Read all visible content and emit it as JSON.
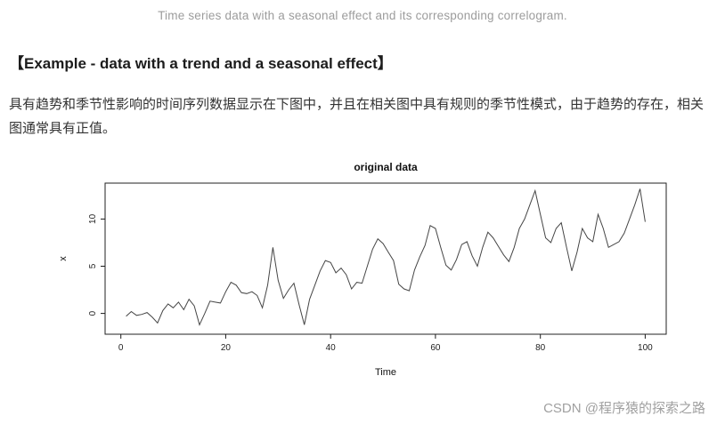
{
  "page": {
    "caption": "Time series data with a seasonal effect and its corresponding correlogram.",
    "heading": "【Example - data with a trend and a seasonal effect】",
    "paragraph": "具有趋势和季节性影响的时间序列数据显示在下图中，并且在相关图中具有规则的季节性模式，由于趋势的存在，相关图通常具有正值。",
    "watermark": "CSDN @程序猿的探索之路"
  },
  "chart_data": {
    "type": "line",
    "title": "original data",
    "xlabel": "Time",
    "ylabel": "x",
    "xlim": [
      -3,
      104
    ],
    "ylim": [
      -2.2,
      13.8
    ],
    "x_ticks": [
      0,
      20,
      40,
      60,
      80,
      100
    ],
    "y_ticks": [
      0,
      5,
      10
    ],
    "line_color": "#454545",
    "axis_color": "#1a1a1a",
    "x_start": 1,
    "x_step": 1,
    "values": [
      -0.3,
      0.2,
      -0.2,
      -0.1,
      0.1,
      -0.4,
      -1.0,
      0.3,
      1.0,
      0.6,
      1.2,
      0.4,
      1.5,
      0.8,
      -1.2,
      0.0,
      1.3,
      1.2,
      1.1,
      2.3,
      3.3,
      3.0,
      2.2,
      2.1,
      2.3,
      1.9,
      0.6,
      3.0,
      7.0,
      3.5,
      1.6,
      2.5,
      3.2,
      0.9,
      -1.2,
      1.5,
      3.0,
      4.5,
      5.6,
      5.4,
      4.3,
      4.8,
      4.1,
      2.6,
      3.3,
      3.2,
      5.0,
      6.8,
      7.9,
      7.4,
      6.5,
      5.6,
      3.1,
      2.6,
      2.4,
      4.6,
      6.0,
      7.2,
      9.3,
      9.0,
      7.0,
      5.1,
      4.6,
      5.7,
      7.3,
      7.6,
      6.1,
      5.0,
      7.0,
      8.6,
      8.0,
      7.1,
      6.2,
      5.5,
      7.0,
      9.0,
      10.0,
      11.5,
      13.0,
      10.5,
      8.0,
      7.5,
      9.0,
      9.6,
      7.0,
      4.5,
      6.5,
      9.0,
      8.0,
      7.6,
      10.5,
      9.0,
      7.0,
      7.3,
      7.6,
      8.5,
      10.0,
      11.5,
      13.2,
      9.7
    ]
  }
}
